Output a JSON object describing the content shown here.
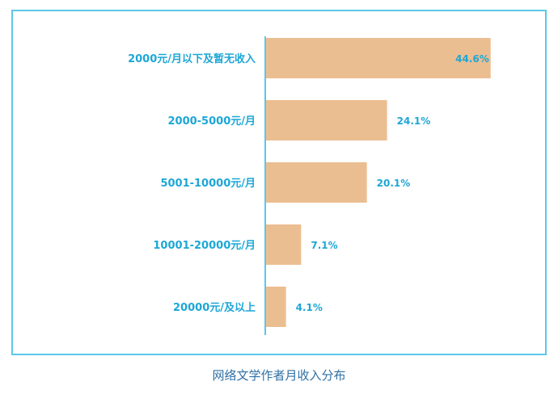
{
  "chart_data": {
    "type": "bar",
    "orientation": "horizontal",
    "title": "网络文学作者月收入分布",
    "categories": [
      "2000元/月以下及暂无收入",
      "2000-5000元/月",
      "5001-10000元/月",
      "10001-20000元/月",
      "20000元/及以上"
    ],
    "values": [
      44.6,
      24.1,
      20.1,
      7.1,
      4.1
    ],
    "value_labels": [
      "44.6%",
      "24.1%",
      "20.1%",
      "7.1%",
      "4.1%"
    ],
    "xlim": [
      0,
      48
    ],
    "grid": false,
    "bar_color": "#ebbe91",
    "label_color": "#1da7d6",
    "axis_color": "#5cc7e8"
  }
}
